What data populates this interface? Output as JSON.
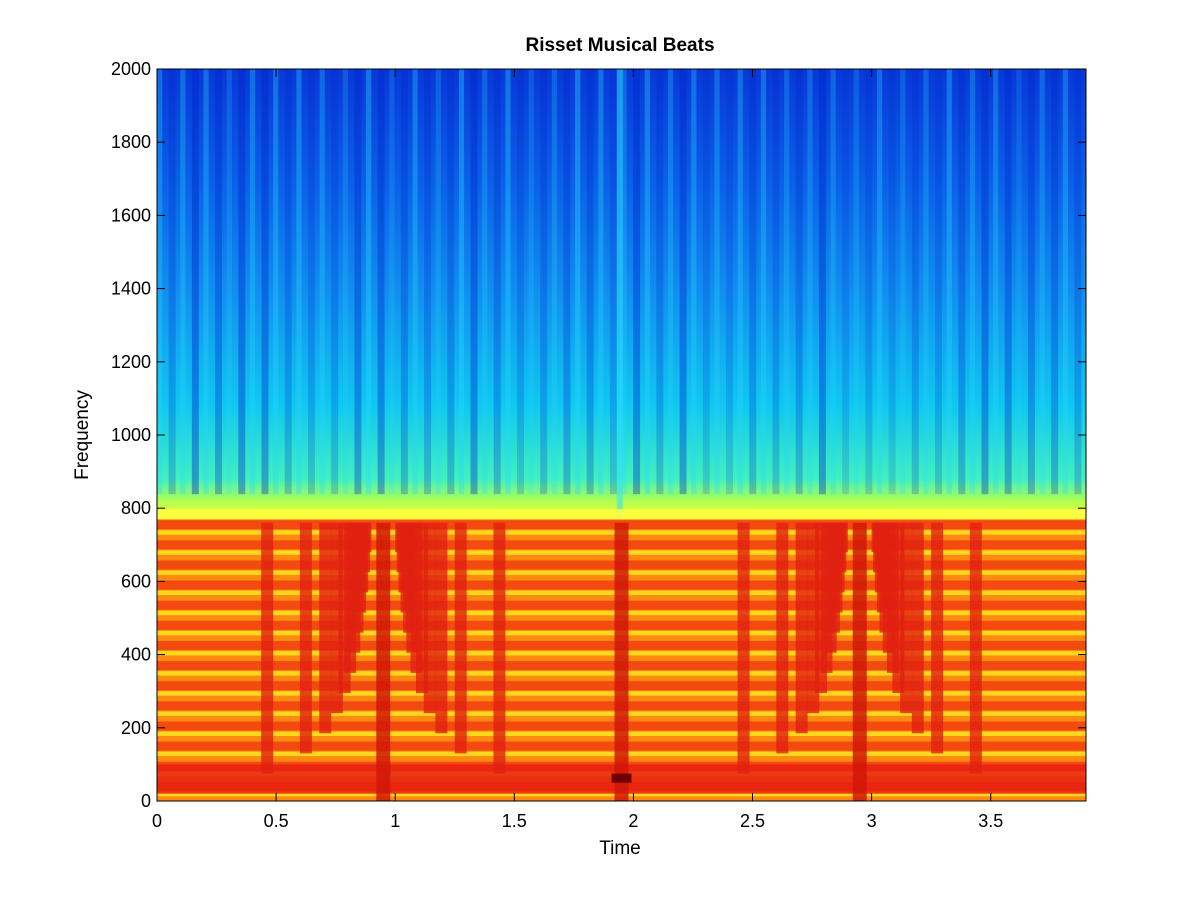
{
  "chart_data": {
    "type": "heatmap",
    "title": "Risset Musical Beats",
    "xlabel": "Time",
    "ylabel": "Frequency",
    "xlim": [
      0,
      3.9
    ],
    "ylim": [
      0,
      2000
    ],
    "x_ticks": [
      0,
      0.5,
      1,
      1.5,
      2,
      2.5,
      3,
      3.5
    ],
    "x_tick_labels": [
      "0",
      "0.5",
      "1",
      "1.5",
      "2",
      "2.5",
      "3",
      "3.5"
    ],
    "y_ticks": [
      0,
      200,
      400,
      600,
      800,
      1000,
      1200,
      1400,
      1600,
      1800,
      2000
    ],
    "y_tick_labels": [
      "0",
      "200",
      "400",
      "600",
      "800",
      "1000",
      "1200",
      "1400",
      "1600",
      "1800",
      "2000"
    ],
    "colormap": "jet",
    "grid": false,
    "legend": "none",
    "harmonic_spacing_hz": 55,
    "harmonic_cutoff_hz": 770,
    "beat_period_s": 1.95,
    "strong_bands": [
      {
        "from_hz": 20,
        "to_hz": 100,
        "intensity": 0.95
      },
      {
        "from_hz": 0,
        "to_hz": 770,
        "intensity": 0.85
      }
    ],
    "beat_columns_s": [
      0.95,
      1.95,
      2.95
    ]
  }
}
